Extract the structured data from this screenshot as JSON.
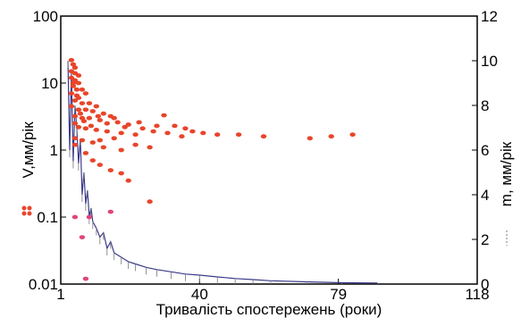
{
  "chart_data": {
    "type": "scatter",
    "title": "",
    "xlabel": "Тривалість спостережень (роки)",
    "ylabel_left": "V,мм/рік",
    "ylabel_right": "m, мм/рік",
    "x_ticks": [
      1,
      40,
      79,
      118
    ],
    "xlim": [
      1,
      118
    ],
    "y_left": {
      "scale": "log",
      "lim": [
        0.01,
        100
      ],
      "ticks": [
        "0.01",
        "0.1",
        "1",
        "10",
        "100"
      ]
    },
    "y_right": {
      "scale": "linear",
      "lim": [
        0,
        12
      ],
      "ticks": [
        "0",
        "2",
        "4",
        "6",
        "8",
        "10",
        "12"
      ]
    },
    "grid": false,
    "colors": {
      "points": "#e8452a",
      "points_low": "#e0457a",
      "m_line": "#3a3a8a",
      "m_trail": "#777777"
    },
    "series": [
      {
        "name": "V,мм/рік",
        "axis": "left",
        "kind": "scatter",
        "points": [
          [
            4,
            22
          ],
          [
            4.5,
            19
          ],
          [
            5,
            17
          ],
          [
            4,
            15
          ],
          [
            5,
            14
          ],
          [
            6,
            13
          ],
          [
            4,
            12
          ],
          [
            5,
            11
          ],
          [
            6,
            10
          ],
          [
            4.5,
            9
          ],
          [
            5.5,
            8
          ],
          [
            7,
            8
          ],
          [
            8,
            7
          ],
          [
            4,
            7
          ],
          [
            6,
            6
          ],
          [
            5,
            5.5
          ],
          [
            7,
            5
          ],
          [
            9,
            5
          ],
          [
            11,
            4.5
          ],
          [
            4,
            4.5
          ],
          [
            6,
            4
          ],
          [
            8,
            4
          ],
          [
            10,
            3.8
          ],
          [
            13,
            3.5
          ],
          [
            15,
            3.2
          ],
          [
            5,
            3.2
          ],
          [
            7,
            3
          ],
          [
            9,
            3
          ],
          [
            12,
            2.8
          ],
          [
            17,
            2.6
          ],
          [
            20,
            2.4
          ],
          [
            23,
            2.6
          ],
          [
            5,
            2.5
          ],
          [
            6,
            2.2
          ],
          [
            8,
            2.1
          ],
          [
            11,
            2
          ],
          [
            14,
            1.9
          ],
          [
            18,
            1.8
          ],
          [
            22,
            1.7
          ],
          [
            27,
            1.9
          ],
          [
            31,
            1.8
          ],
          [
            35,
            1.6
          ],
          [
            38,
            1.9
          ],
          [
            41,
            1.8
          ],
          [
            45,
            1.7
          ],
          [
            51,
            1.7
          ],
          [
            58,
            1.6
          ],
          [
            71,
            1.5
          ],
          [
            77,
            1.6
          ],
          [
            83,
            1.7
          ],
          [
            5,
            1.5
          ],
          [
            7,
            1.4
          ],
          [
            10,
            1.3
          ],
          [
            13,
            1.1
          ],
          [
            18,
            1
          ],
          [
            22,
            1.2
          ],
          [
            26,
            1.1
          ],
          [
            5,
            1.2
          ],
          [
            8,
            0.9
          ],
          [
            10,
            0.7
          ],
          [
            12,
            0.6
          ],
          [
            15,
            0.5
          ],
          [
            18,
            0.45
          ],
          [
            20,
            0.35
          ],
          [
            14,
            2.5
          ],
          [
            16,
            3
          ],
          [
            19,
            2.2
          ],
          [
            24,
            2.1
          ],
          [
            28,
            2.3
          ],
          [
            30,
            3.3
          ],
          [
            33,
            2.3
          ],
          [
            36,
            2.1
          ],
          [
            4.5,
            10
          ],
          [
            5.5,
            6.5
          ],
          [
            6.5,
            3.5
          ],
          [
            7.5,
            2.7
          ],
          [
            9.5,
            2.3
          ],
          [
            11.5,
            3.2
          ],
          [
            16,
            1.5
          ],
          [
            12,
            1.4
          ],
          [
            26,
            0.17
          ]
        ]
      },
      {
        "name": "",
        "axis": "left",
        "kind": "scatter",
        "points": [
          [
            5,
            0.1
          ],
          [
            9,
            0.1
          ],
          [
            15,
            0.12
          ],
          [
            7,
            0.05
          ],
          [
            8,
            0.012
          ]
        ]
      },
      {
        "name": "m, мм/рік",
        "axis": "right",
        "kind": "line",
        "points": [
          [
            3,
            10
          ],
          [
            3.5,
            6
          ],
          [
            4,
            9.5
          ],
          [
            4.5,
            5.5
          ],
          [
            5,
            8
          ],
          [
            5.5,
            7
          ],
          [
            6,
            5.4
          ],
          [
            6.5,
            6.5
          ],
          [
            7,
            4
          ],
          [
            7.5,
            5
          ],
          [
            8,
            3.6
          ],
          [
            8.5,
            4.2
          ],
          [
            9,
            3
          ],
          [
            9.5,
            3.4
          ],
          [
            10,
            2.8
          ],
          [
            11,
            2.5
          ],
          [
            12,
            2.1
          ],
          [
            13,
            2.3
          ],
          [
            14,
            1.6
          ],
          [
            15,
            1.9
          ],
          [
            16,
            1.4
          ],
          [
            18,
            1.2
          ],
          [
            20,
            1
          ],
          [
            22,
            0.9
          ],
          [
            25,
            0.75
          ],
          [
            28,
            0.65
          ],
          [
            32,
            0.55
          ],
          [
            36,
            0.45
          ],
          [
            40,
            0.4
          ],
          [
            45,
            0.32
          ],
          [
            50,
            0.25
          ],
          [
            55,
            0.2
          ],
          [
            60,
            0.15
          ],
          [
            70,
            0.1
          ],
          [
            80,
            0.06
          ],
          [
            90,
            0.05
          ]
        ]
      }
    ]
  }
}
